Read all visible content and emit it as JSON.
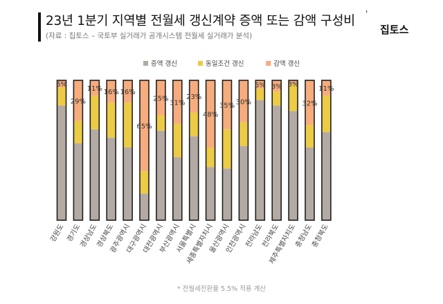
{
  "header": {
    "title": "23년 1분기 지역별 전월세 갱신계약 증액 또는 감액 구성비",
    "title_mark": "'",
    "subtitle": "(자료 : 집토스 – 국토부 실거래가 공개시스템 전월세 실거래가 분석)",
    "brand": "집토스"
  },
  "footnote": "* 전월세전환율 5.5% 적용 계산",
  "colors": {
    "increase": "#b4aaa4",
    "same": "#eccb45",
    "decrease": "#f7ac7d",
    "bar_stroke": "#1e1e1e"
  },
  "chart_data": {
    "type": "bar",
    "stacked": true,
    "percent": true,
    "ylim": [
      0,
      100
    ],
    "grid": false,
    "legend_position": "top",
    "categories": [
      "강원도",
      "경기도",
      "경상남도",
      "경상북도",
      "광주광역시",
      "대구광역시",
      "대전광역시",
      "부산광역시",
      "서울특별시",
      "세종특별자치시",
      "울산광역시",
      "인천광역시",
      "전라남도",
      "전라북도",
      "제주특별자치도",
      "충청남도",
      "충청북도"
    ],
    "series": [
      {
        "name": "증액 갱신",
        "color_key": "increase",
        "values": [
          82,
          55,
          65,
          59,
          52,
          19,
          64,
          45,
          60,
          38,
          37,
          53,
          86,
          82,
          78,
          52,
          63
        ]
      },
      {
        "name": "동일조건 갱신",
        "color_key": "same",
        "values": [
          13,
          16,
          24,
          25,
          32,
          16,
          11,
          24,
          17,
          14,
          28,
          17,
          8,
          10,
          19,
          16,
          26
        ]
      },
      {
        "name": "감액 갱신",
        "color_key": "decrease",
        "values": [
          5,
          29,
          11,
          16,
          16,
          65,
          25,
          31,
          23,
          48,
          35,
          30,
          6,
          8,
          3,
          32,
          11
        ]
      }
    ],
    "labeled_series": "감액 갱신",
    "data_labels": [
      "5%",
      "29%",
      "11%",
      "16%",
      "16%",
      "65%",
      "25%",
      "31%",
      "23%",
      "48%",
      "35%",
      "30%",
      "6%",
      "8%",
      "3%",
      "32%",
      "11%"
    ]
  }
}
